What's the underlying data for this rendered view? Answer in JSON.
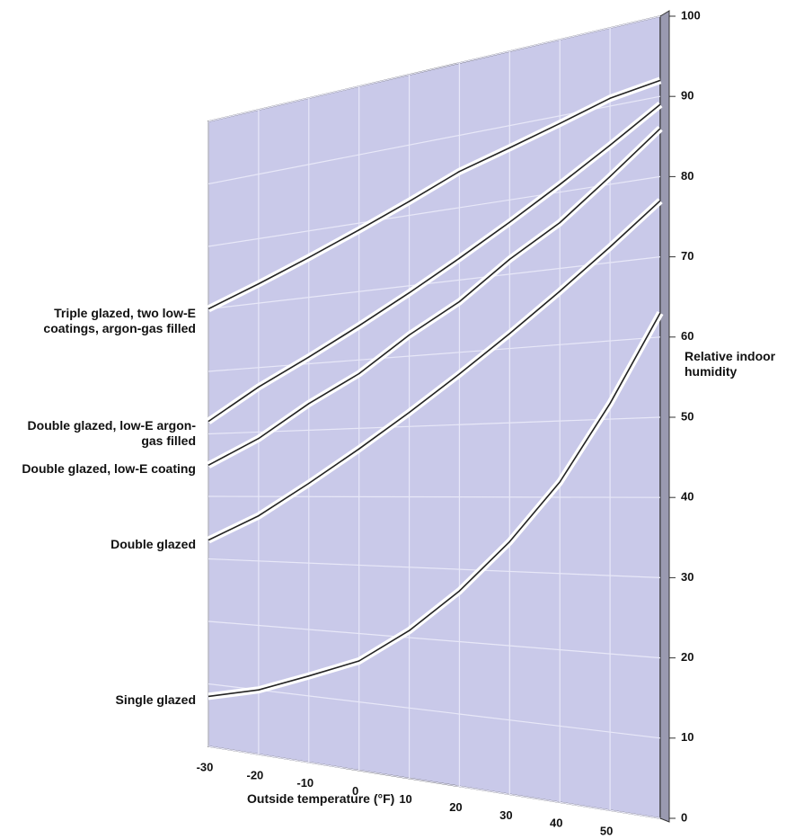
{
  "chart_data": {
    "type": "line",
    "x_label": "Outside temperature (°F)",
    "y_label": "Relative indoor humidity",
    "x": [
      -30,
      -20,
      -10,
      0,
      10,
      20,
      30,
      40,
      50,
      60
    ],
    "xlim": [
      -30,
      60
    ],
    "xticks": [
      -30,
      -20,
      -10,
      0,
      10,
      20,
      30,
      40,
      50
    ],
    "ylim": [
      0,
      100
    ],
    "yticks": [
      0,
      10,
      20,
      30,
      40,
      50,
      60,
      70,
      80,
      90,
      100
    ],
    "grid": true,
    "series": [
      {
        "name": "Triple glazed, two low-E coatings, argon-gas filled",
        "color": "#222222",
        "values": [
          70,
          73,
          76,
          79,
          82,
          85,
          87,
          89,
          91,
          92
        ]
      },
      {
        "name": "Double glazed, low-E argon-gas filled",
        "color": "#222222",
        "values": [
          52,
          57,
          61,
          65,
          69,
          73,
          77,
          81,
          85,
          89
        ]
      },
      {
        "name": "Double glazed, low-E coating",
        "color": "#222222",
        "values": [
          45,
          49,
          54,
          58,
          63,
          67,
          72,
          76,
          81,
          86
        ]
      },
      {
        "name": "Double glazed",
        "color": "#222222",
        "values": [
          33,
          37,
          42,
          47,
          52,
          57,
          62,
          67,
          72,
          77
        ]
      },
      {
        "name": "Single glazed",
        "color": "#222222",
        "values": [
          8,
          10,
          13,
          16,
          21,
          27,
          34,
          42,
          52,
          63
        ]
      }
    ]
  }
}
